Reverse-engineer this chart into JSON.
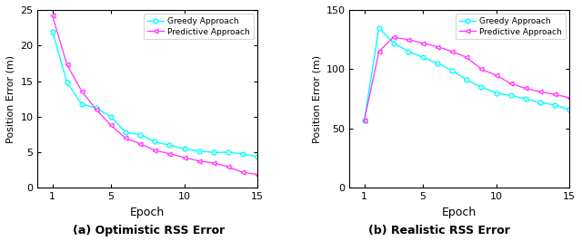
{
  "epochs": [
    1,
    2,
    3,
    4,
    5,
    6,
    7,
    8,
    9,
    10,
    11,
    12,
    13,
    14,
    15
  ],
  "opt_greedy": [
    22.0,
    14.8,
    11.8,
    11.2,
    10.0,
    7.8,
    7.5,
    6.5,
    6.0,
    5.5,
    5.2,
    5.0,
    5.0,
    4.8,
    4.4
  ],
  "opt_predictive": [
    24.2,
    17.3,
    13.6,
    11.0,
    8.8,
    7.0,
    6.2,
    5.3,
    4.8,
    4.3,
    3.8,
    3.5,
    3.0,
    2.2,
    1.9
  ],
  "real_greedy": [
    57.0,
    135.0,
    122.0,
    115.0,
    110.0,
    105.0,
    99.0,
    91.0,
    85.0,
    80.0,
    78.0,
    75.0,
    72.0,
    70.0,
    66.0
  ],
  "real_predictive": [
    57.0,
    115.0,
    127.0,
    125.0,
    122.0,
    119.0,
    115.0,
    110.0,
    100.0,
    95.0,
    88.0,
    84.0,
    81.0,
    79.0,
    76.0
  ],
  "color_greedy": "#00FFFF",
  "color_predictive": "#FF40FF",
  "opt_ylim": [
    0,
    25
  ],
  "opt_yticks": [
    0,
    5,
    10,
    15,
    20,
    25
  ],
  "real_ylim": [
    0,
    150
  ],
  "real_yticks": [
    0,
    50,
    100,
    150
  ],
  "xlabel": "Epoch",
  "ylabel": "Position Error (m)",
  "label_greedy": "Greedy Approach",
  "label_predictive": "Predictive Approach",
  "title_a": "(a) Optimistic RSS Error",
  "title_b": "(b) Realistic RSS Error",
  "xticks": [
    1,
    5,
    10,
    15
  ]
}
